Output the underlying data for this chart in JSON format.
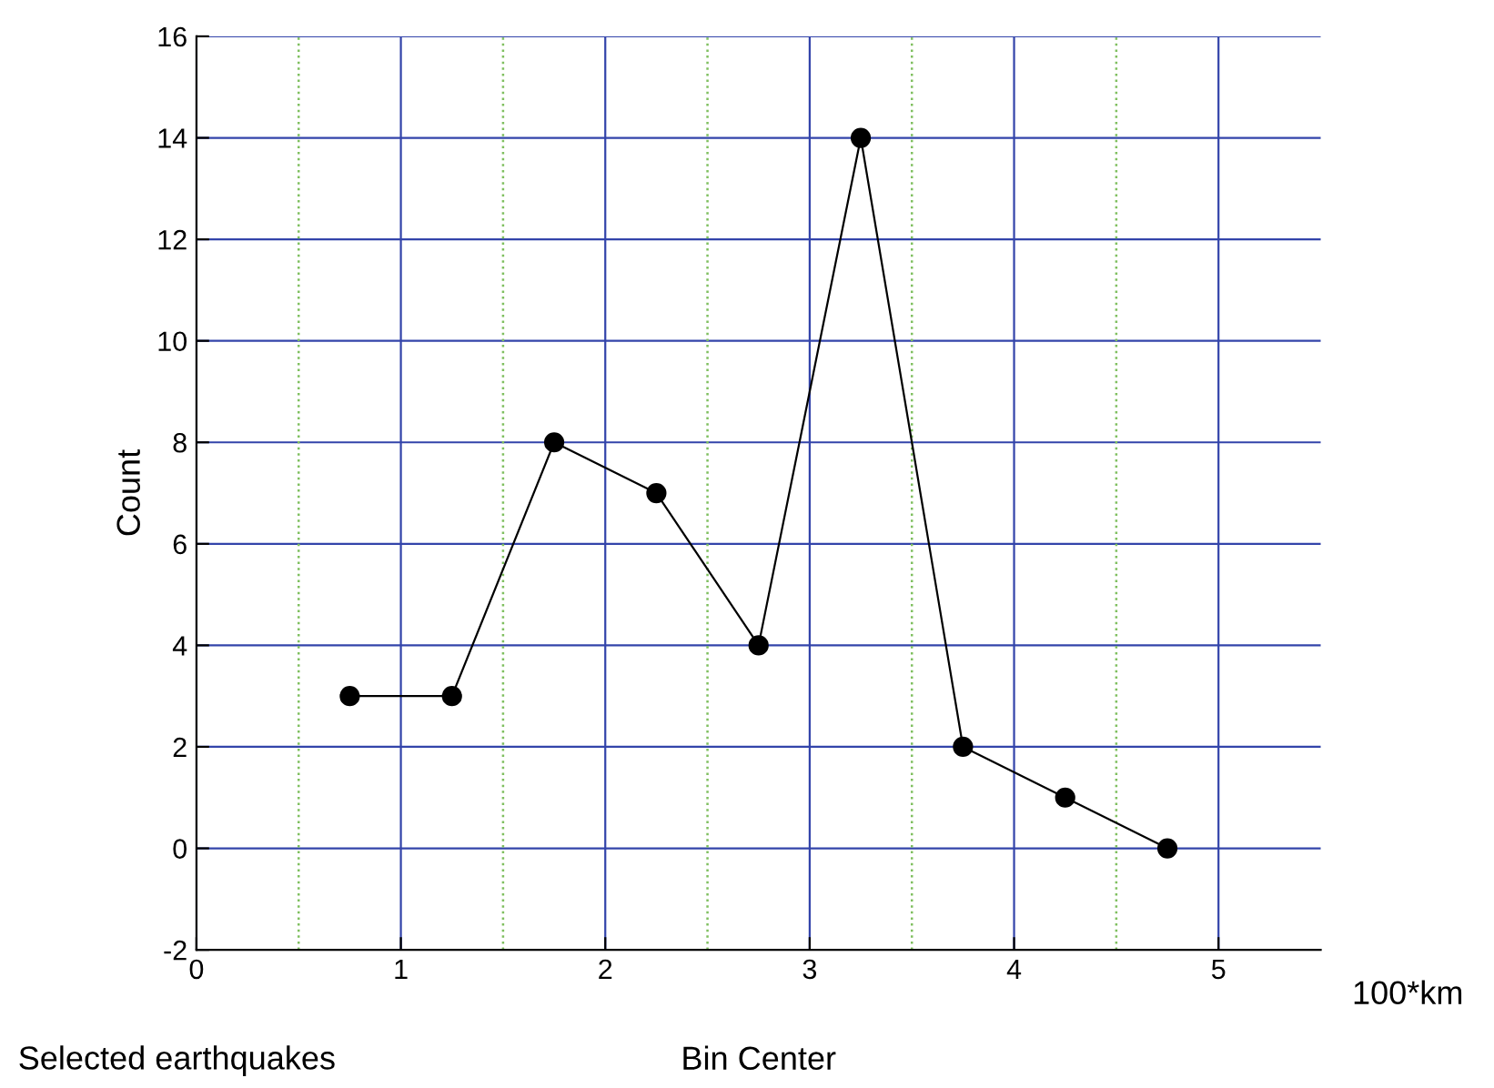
{
  "chart_data": {
    "type": "line",
    "xlabel": "Bin Center",
    "ylabel": "Count",
    "x": [
      0.75,
      1.25,
      1.75,
      2.25,
      2.75,
      3.25,
      3.75,
      4.25,
      4.75
    ],
    "series": [
      {
        "color": "#000000",
        "values": [
          3,
          3,
          8,
          7,
          4,
          14,
          2,
          1,
          0
        ]
      }
    ],
    "xlim": [
      0,
      5.5
    ],
    "xticks": [
      0,
      1,
      2,
      3,
      4,
      5
    ],
    "ylim": [
      -2,
      16
    ],
    "yticks": [
      -2,
      0,
      2,
      4,
      6,
      8,
      10,
      12,
      14,
      16
    ],
    "grid": true,
    "ref_lines": [
      {
        "axis": "x",
        "value": 0.5,
        "color": "#7fbf5f",
        "line_style": "dotted"
      },
      {
        "axis": "x",
        "value": 1.5,
        "color": "#7fbf5f",
        "line_style": "dotted"
      },
      {
        "axis": "x",
        "value": 2.5,
        "color": "#7fbf5f",
        "line_style": "dotted"
      },
      {
        "axis": "x",
        "value": 3.5,
        "color": "#7fbf5f",
        "line_style": "dotted"
      },
      {
        "axis": "x",
        "value": 4.5,
        "color": "#7fbf5f",
        "line_style": "dotted"
      }
    ],
    "marker": "circle",
    "line_style": "solid",
    "annotations": [
      "100*km",
      "Selected earthquakes"
    ]
  }
}
